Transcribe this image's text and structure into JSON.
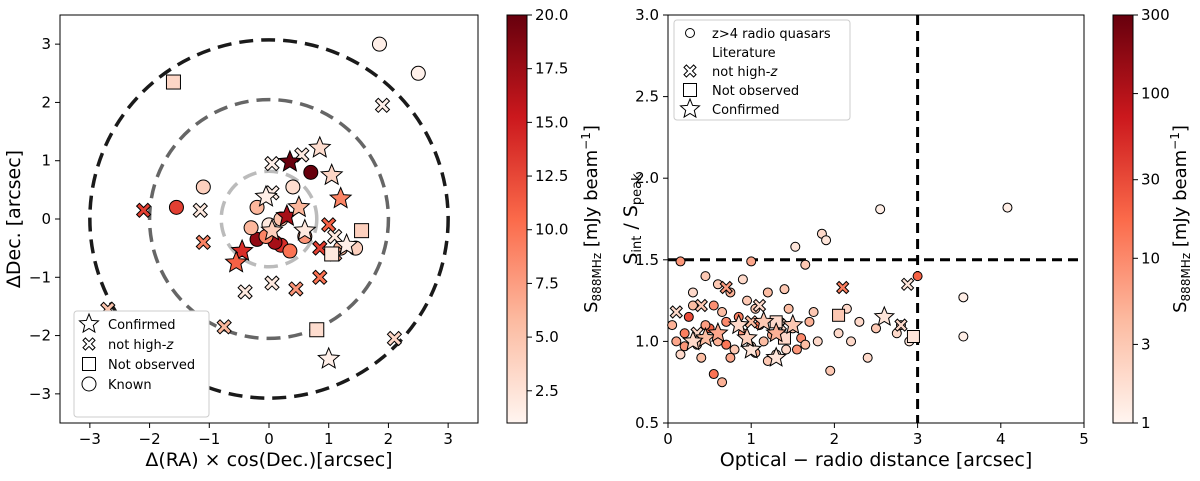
{
  "chart_data": [
    {
      "type": "scatter",
      "xlabel": "Δ(RA) × cos(Dec.)[arcsec]",
      "ylabel": "ΔDec. [arcsec]",
      "xlim": [
        -3.5,
        3.5
      ],
      "ylim": [
        -3.5,
        3.5
      ],
      "xticks": [
        -3,
        -2,
        -1,
        0,
        1,
        2,
        3
      ],
      "yticks": [
        -3,
        -2,
        -1,
        0,
        1,
        2,
        3
      ],
      "circles": [
        {
          "r": 3,
          "color": "#1a1a1a"
        },
        {
          "r": 2,
          "color": "#666666"
        },
        {
          "r": 0.8,
          "color": "#bbbbbb"
        }
      ],
      "colorbar": {
        "label": "S888MHz [mJy beam⁻¹]",
        "min": 1,
        "max": 20,
        "scale": "linear",
        "ticks": [
          2.5,
          5.0,
          7.5,
          10.0,
          12.5,
          15.0,
          17.5,
          20.0
        ],
        "tick_labels": [
          "2.5",
          "5.0",
          "7.5",
          "10.0",
          "12.5",
          "15.0",
          "17.5",
          "20.0"
        ]
      },
      "legend": {
        "location": "lower-left",
        "entries": [
          {
            "marker": "star",
            "label": "Confirmed"
          },
          {
            "marker": "x",
            "label": "not high-z"
          },
          {
            "marker": "square",
            "label": "Not observed"
          },
          {
            "marker": "circle",
            "label": "Known"
          }
        ]
      },
      "series": [
        {
          "name": "Known",
          "marker": "circle",
          "points": [
            [
              1.85,
              3.0,
              1.5
            ],
            [
              2.5,
              2.5,
              1.3
            ],
            [
              -1.1,
              0.55,
              4
            ],
            [
              0.4,
              0.55,
              3
            ],
            [
              0.7,
              0.8,
              20
            ],
            [
              -1.55,
              0.2,
              13
            ],
            [
              -0.2,
              0.2,
              6
            ],
            [
              0.0,
              -0.1,
              2
            ],
            [
              -0.2,
              -0.35,
              18
            ],
            [
              0.2,
              -0.45,
              14
            ],
            [
              0.35,
              -0.55,
              10
            ],
            [
              0.1,
              -0.4,
              17
            ],
            [
              1.45,
              -0.5,
              4
            ],
            [
              1.2,
              -0.5,
              6
            ],
            [
              -0.05,
              -0.3,
              9
            ],
            [
              0.2,
              0.0,
              5
            ],
            [
              0.6,
              -0.3,
              8
            ],
            [
              -0.3,
              -0.15,
              6
            ]
          ]
        },
        {
          "name": "not high-z",
          "marker": "x",
          "points": [
            [
              1.9,
              1.95,
              1.5
            ],
            [
              -2.1,
              0.15,
              13
            ],
            [
              -1.1,
              -0.4,
              9
            ],
            [
              -1.15,
              0.15,
              2
            ],
            [
              0.05,
              0.95,
              1.5
            ],
            [
              0.05,
              0.45,
              1.5
            ],
            [
              0.55,
              1.1,
              2
            ],
            [
              1.0,
              -0.1,
              11
            ],
            [
              0.85,
              -0.5,
              13
            ],
            [
              -0.4,
              -1.25,
              2
            ],
            [
              0.45,
              -1.2,
              8
            ],
            [
              0.05,
              -1.1,
              2
            ],
            [
              0.85,
              -1.0,
              10
            ],
            [
              -0.75,
              -1.85,
              6
            ],
            [
              2.1,
              -2.05,
              3.5
            ],
            [
              -2.7,
              -1.55,
              5
            ],
            [
              1.1,
              -0.6,
              7
            ],
            [
              1.1,
              -0.3,
              2
            ]
          ]
        },
        {
          "name": "Not observed",
          "marker": "square",
          "points": [
            [
              -1.6,
              2.35,
              3.5
            ],
            [
              0.8,
              -1.9,
              3
            ],
            [
              1.55,
              -0.2,
              4
            ],
            [
              1.05,
              -0.6,
              2
            ]
          ]
        },
        {
          "name": "Confirmed",
          "marker": "star",
          "points": [
            [
              0.35,
              0.98,
              20
            ],
            [
              0.85,
              1.22,
              3
            ],
            [
              -0.05,
              0.38,
              1.5
            ],
            [
              1.05,
              0.75,
              3.5
            ],
            [
              1.2,
              0.35,
              9
            ],
            [
              0.3,
              0.05,
              17
            ],
            [
              -0.45,
              -0.55,
              14
            ],
            [
              -0.55,
              -0.75,
              11
            ],
            [
              1.3,
              -0.45,
              1.5
            ],
            [
              1.0,
              -2.4,
              1.5
            ],
            [
              0.05,
              -0.2,
              4
            ],
            [
              0.5,
              0.2,
              6
            ],
            [
              0.6,
              -0.2,
              2
            ]
          ]
        }
      ]
    },
    {
      "type": "scatter",
      "xlabel": "Optical − radio distance [arcsec]",
      "ylabel": "Sint / Speak",
      "xlim": [
        0,
        5
      ],
      "ylim": [
        0.5,
        3.0
      ],
      "xticks": [
        0,
        1,
        2,
        3,
        4,
        5
      ],
      "yticks": [
        0.5,
        1.0,
        1.5,
        2.0,
        2.5,
        3.0
      ],
      "hline": 1.5,
      "vline": 3,
      "colorbar": {
        "label": "S888MHz [mJy beam⁻¹]",
        "min": 1,
        "max": 300,
        "scale": "log",
        "ticks": [
          1,
          3,
          10,
          30,
          100,
          300
        ],
        "tick_labels": [
          "1",
          "3",
          "10",
          "30",
          "100",
          "300"
        ]
      },
      "legend": {
        "location": "top-left",
        "entries": [
          {
            "marker": "circle-small",
            "label": "z>4 radio quasars"
          },
          {
            "marker": "none",
            "label": "Literature"
          },
          {
            "marker": "x",
            "label": "not high-z"
          },
          {
            "marker": "square",
            "label": "Not observed"
          },
          {
            "marker": "star",
            "label": "Confirmed"
          }
        ]
      },
      "series": [
        {
          "name": "z>4 radio quasars Literature",
          "marker": "circle",
          "points": [
            [
              2.55,
              1.81,
              1.2
            ],
            [
              4.08,
              1.82,
              1.2
            ],
            [
              1.85,
              1.66,
              2
            ],
            [
              1.9,
              1.62,
              1.5
            ],
            [
              1.53,
              1.58,
              1.5
            ],
            [
              3.55,
              1.27,
              1.2
            ],
            [
              3.55,
              1.03,
              1.2
            ],
            [
              3.0,
              1.4,
              20
            ],
            [
              0.15,
              1.49,
              8
            ],
            [
              1.0,
              1.49,
              6
            ],
            [
              1.65,
              1.47,
              3
            ],
            [
              0.75,
              1.3,
              5
            ],
            [
              1.2,
              1.3,
              4
            ],
            [
              0.45,
              1.4,
              3
            ],
            [
              0.55,
              0.8,
              15
            ],
            [
              0.65,
              0.75,
              5
            ],
            [
              1.95,
              0.82,
              3
            ],
            [
              2.4,
              0.9,
              2
            ],
            [
              1.42,
              0.95,
              2
            ],
            [
              0.3,
              1.22,
              4
            ],
            [
              2.15,
              1.2,
              2
            ],
            [
              2.3,
              1.12,
              2
            ],
            [
              2.5,
              1.08,
              3
            ],
            [
              2.75,
              1.05,
              2
            ],
            [
              2.9,
              1.0,
              1.5
            ],
            [
              0.1,
              1.0,
              6
            ],
            [
              0.2,
              1.05,
              12
            ],
            [
              0.35,
              0.98,
              3
            ],
            [
              0.5,
              1.08,
              20
            ],
            [
              0.6,
              1.0,
              5
            ],
            [
              0.7,
              1.12,
              10
            ],
            [
              0.8,
              0.95,
              3
            ],
            [
              0.9,
              1.05,
              8
            ],
            [
              1.0,
              0.97,
              2
            ],
            [
              1.1,
              1.1,
              15
            ],
            [
              1.15,
              1.0,
              4
            ],
            [
              1.25,
              1.04,
              6
            ],
            [
              1.3,
              0.92,
              2
            ],
            [
              1.5,
              1.08,
              3
            ],
            [
              1.6,
              1.02,
              10
            ],
            [
              1.7,
              1.12,
              5
            ],
            [
              1.8,
              1.0,
              2
            ],
            [
              0.25,
              1.15,
              30
            ],
            [
              0.45,
              1.1,
              7
            ],
            [
              0.65,
              1.18,
              4
            ],
            [
              0.85,
              1.15,
              12
            ],
            [
              1.05,
              1.2,
              3
            ],
            [
              1.35,
              1.12,
              5
            ],
            [
              0.15,
              0.92,
              2
            ],
            [
              0.4,
              0.9,
              4
            ],
            [
              0.75,
              0.9,
              6
            ],
            [
              1.2,
              0.88,
              3
            ],
            [
              1.55,
              0.95,
              8
            ],
            [
              1.75,
              1.18,
              3
            ],
            [
              2.05,
              1.05,
              2
            ],
            [
              0.05,
              1.1,
              5
            ],
            [
              0.55,
              1.22,
              9
            ],
            [
              0.95,
              1.25,
              3
            ],
            [
              1.45,
              1.2,
              4
            ],
            [
              0.3,
              1.3,
              2
            ],
            [
              0.6,
              1.35,
              3
            ],
            [
              0.9,
              1.38,
              2
            ],
            [
              1.4,
              1.32,
              3
            ],
            [
              2.6,
              1.15,
              2
            ],
            [
              2.8,
              1.1,
              3
            ],
            [
              0.2,
              0.97,
              8
            ],
            [
              0.7,
              0.98,
              14
            ],
            [
              1.05,
              0.93,
              5
            ],
            [
              1.65,
              0.98,
              4
            ],
            [
              2.2,
              1.0,
              2
            ]
          ]
        },
        {
          "name": "not high-z",
          "marker": "x",
          "points": [
            [
              0.7,
              1.33,
              7
            ],
            [
              0.4,
              1.22,
              3
            ],
            [
              0.1,
              1.18,
              2
            ],
            [
              1.0,
              1.12,
              4
            ],
            [
              1.35,
              1.1,
              2
            ],
            [
              2.1,
              1.33,
              12
            ],
            [
              2.88,
              1.35,
              1.5
            ],
            [
              2.8,
              1.1,
              2
            ],
            [
              1.1,
              1.22,
              2
            ],
            [
              0.35,
              1.05,
              2
            ]
          ]
        },
        {
          "name": "Not observed",
          "marker": "square",
          "points": [
            [
              2.05,
              1.16,
              3
            ],
            [
              1.4,
              1.02,
              2
            ],
            [
              2.95,
              1.03,
              1.5
            ],
            [
              1.3,
              1.12,
              2
            ]
          ]
        },
        {
          "name": "Confirmed",
          "marker": "star",
          "points": [
            [
              0.45,
              1.02,
              4
            ],
            [
              0.85,
              1.1,
              2
            ],
            [
              1.0,
              0.95,
              1.5
            ],
            [
              1.3,
              1.05,
              5
            ],
            [
              1.3,
              0.9,
              1.5
            ],
            [
              1.5,
              1.1,
              3
            ],
            [
              2.6,
              1.15,
              1.5
            ],
            [
              0.95,
              1.02,
              2.5
            ],
            [
              0.6,
              1.05,
              6
            ],
            [
              1.15,
              1.12,
              3
            ],
            [
              0.3,
              1.0,
              2
            ]
          ]
        }
      ]
    }
  ]
}
